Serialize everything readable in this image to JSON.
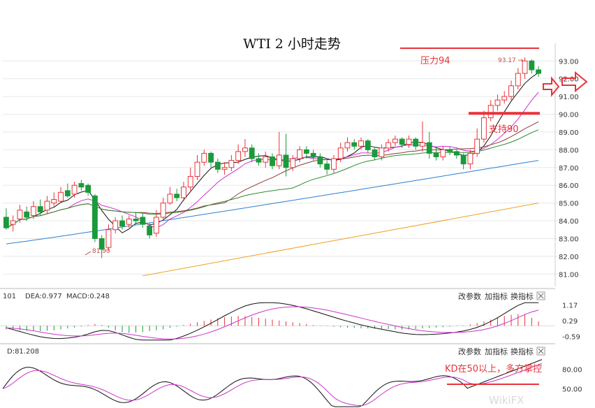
{
  "title": "WTI 2 小时走势",
  "colors": {
    "up": "#e8333a",
    "down": "#1a9a3a",
    "ma5": "#111111",
    "ma10": "#cc33cc",
    "ma20": "#8a3c3c",
    "ma30": "#2e8b2e",
    "ma60": "#2a7fd4",
    "ma120": "#f0a020",
    "annotation": "#e8333a",
    "grid": "#e8e8e8"
  },
  "chart_data": [
    {
      "type": "candlestick",
      "yticks": [
        "93.00",
        "92.00",
        "91.00",
        "90.00",
        "89.00",
        "88.00",
        "87.00",
        "86.00",
        "85.00",
        "84.00",
        "83.00",
        "82.00",
        "81.00"
      ],
      "ylim": [
        80.5,
        93.6
      ],
      "candles": [
        [
          84.2,
          83.6,
          84.7,
          83.5
        ],
        [
          83.8,
          84.0,
          84.3,
          83.4
        ],
        [
          84.1,
          84.6,
          84.9,
          83.9
        ],
        [
          84.5,
          84.2,
          84.8,
          84.0
        ],
        [
          84.3,
          84.8,
          85.1,
          84.1
        ],
        [
          84.8,
          84.5,
          85.2,
          84.3
        ],
        [
          84.6,
          85.1,
          85.4,
          84.4
        ],
        [
          85.0,
          85.2,
          85.6,
          84.8
        ],
        [
          85.1,
          85.6,
          85.9,
          85.0
        ],
        [
          85.7,
          85.4,
          86.1,
          85.3
        ],
        [
          85.5,
          86.0,
          86.2,
          85.3
        ],
        [
          86.1,
          85.9,
          86.3,
          85.7
        ],
        [
          86.0,
          85.6,
          86.1,
          85.4
        ],
        [
          85.4,
          83.0,
          85.5,
          82.8
        ],
        [
          83.0,
          82.4,
          83.2,
          81.9
        ],
        [
          82.5,
          83.5,
          83.8,
          82.3
        ],
        [
          83.5,
          84.0,
          84.2,
          83.3
        ],
        [
          84.0,
          83.7,
          84.3,
          83.5
        ],
        [
          83.8,
          84.1,
          84.3,
          83.6
        ],
        [
          84.1,
          84.0,
          84.5,
          83.8
        ],
        [
          84.2,
          83.8,
          84.4,
          83.6
        ],
        [
          83.7,
          83.2,
          83.9,
          83.0
        ],
        [
          83.3,
          84.2,
          84.6,
          83.1
        ],
        [
          84.2,
          85.0,
          85.3,
          84.0
        ],
        [
          85.0,
          85.5,
          85.9,
          84.9
        ],
        [
          85.5,
          85.3,
          85.8,
          85.1
        ],
        [
          85.3,
          85.9,
          86.2,
          85.1
        ],
        [
          85.9,
          86.5,
          87.0,
          85.7
        ],
        [
          86.5,
          87.3,
          87.7,
          86.3
        ],
        [
          87.3,
          87.8,
          88.0,
          87.1
        ],
        [
          87.8,
          87.3,
          87.9,
          87.0
        ],
        [
          87.3,
          86.9,
          87.5,
          86.7
        ],
        [
          86.9,
          87.0,
          87.3,
          86.6
        ],
        [
          87.0,
          87.4,
          87.7,
          86.8
        ],
        [
          87.4,
          87.9,
          88.3,
          87.2
        ],
        [
          87.9,
          88.1,
          88.6,
          87.6
        ],
        [
          88.1,
          87.5,
          88.3,
          87.3
        ],
        [
          87.5,
          87.3,
          87.8,
          87.1
        ],
        [
          87.3,
          87.6,
          87.9,
          87.0
        ],
        [
          87.6,
          87.1,
          87.8,
          86.9
        ],
        [
          87.1,
          87.7,
          89.0,
          86.9
        ],
        [
          87.7,
          87.0,
          88.9,
          86.5
        ],
        [
          87.0,
          87.5,
          87.7,
          86.8
        ],
        [
          87.5,
          88.0,
          88.2,
          87.3
        ],
        [
          88.0,
          87.8,
          88.2,
          87.5
        ],
        [
          87.8,
          87.6,
          88.0,
          87.4
        ],
        [
          87.6,
          87.2,
          87.8,
          87.0
        ],
        [
          87.2,
          86.9,
          87.4,
          86.6
        ],
        [
          86.9,
          87.5,
          87.7,
          86.7
        ],
        [
          87.5,
          88.1,
          88.4,
          87.3
        ],
        [
          88.1,
          88.4,
          88.7,
          87.9
        ],
        [
          88.4,
          88.2,
          88.6,
          88.0
        ],
        [
          88.2,
          88.5,
          88.7,
          88.0
        ],
        [
          88.5,
          88.0,
          88.6,
          87.8
        ],
        [
          88.0,
          87.6,
          88.1,
          87.4
        ],
        [
          87.6,
          88.1,
          88.3,
          87.4
        ],
        [
          88.1,
          88.4,
          88.6,
          87.9
        ],
        [
          88.4,
          88.6,
          88.8,
          88.2
        ],
        [
          88.6,
          88.3,
          88.7,
          88.1
        ],
        [
          88.3,
          88.6,
          88.8,
          88.1
        ],
        [
          88.6,
          88.2,
          88.7,
          88.0
        ],
        [
          88.2,
          88.4,
          89.6,
          87.9
        ],
        [
          88.4,
          87.8,
          89.0,
          87.5
        ],
        [
          87.8,
          87.6,
          88.1,
          87.4
        ],
        [
          87.6,
          88.0,
          88.2,
          87.4
        ],
        [
          88.0,
          87.9,
          88.2,
          87.7
        ],
        [
          87.9,
          87.7,
          88.0,
          87.5
        ],
        [
          87.7,
          87.2,
          87.8,
          86.9
        ],
        [
          87.2,
          87.8,
          88.0,
          86.9
        ],
        [
          87.8,
          88.6,
          89.2,
          87.6
        ],
        [
          88.6,
          89.8,
          90.2,
          88.4
        ],
        [
          89.8,
          90.5,
          90.8,
          89.6
        ],
        [
          90.5,
          90.8,
          91.1,
          90.2
        ],
        [
          90.8,
          91.0,
          91.3,
          90.6
        ],
        [
          91.0,
          91.6,
          91.9,
          90.8
        ],
        [
          91.6,
          92.3,
          92.6,
          91.4
        ],
        [
          92.3,
          93.0,
          93.2,
          92.0
        ],
        [
          93.0,
          92.5,
          93.1,
          92.3
        ],
        [
          92.5,
          92.3,
          92.7,
          92.1
        ]
      ],
      "ma_lines_visible": 6,
      "annotations": [
        {
          "label": "压力94",
          "value": 93.5
        },
        {
          "label": "支持90",
          "value": 90.05
        },
        {
          "label": "93.17",
          "value": 93.17
        },
        {
          "label": "81.90",
          "value": 81.9
        }
      ],
      "buttons": [
        "改参数",
        "加指标",
        "换指标"
      ]
    },
    {
      "type": "macd",
      "header": [
        "101",
        "DEA:0.977",
        "MACD:0.248"
      ],
      "yticks": [
        "1.17",
        "0.29",
        "-0.59"
      ],
      "ylim": [
        -0.85,
        1.35
      ],
      "histogram": [
        -0.2,
        -0.22,
        -0.25,
        -0.28,
        -0.3,
        -0.3,
        -0.28,
        -0.25,
        -0.2,
        -0.15,
        -0.1,
        -0.05,
        0.05,
        0.1,
        0.05,
        -0.1,
        -0.25,
        -0.35,
        -0.4,
        -0.38,
        -0.35,
        -0.3,
        -0.25,
        -0.2,
        -0.12,
        -0.05,
        0.05,
        0.12,
        0.2,
        0.28,
        0.35,
        0.42,
        0.48,
        0.52,
        0.55,
        0.55,
        0.5,
        0.45,
        0.4,
        0.35,
        0.3,
        0.25,
        0.2,
        0.15,
        0.1,
        0.05,
        0.02,
        -0.02,
        -0.05,
        -0.08,
        -0.1,
        -0.12,
        -0.14,
        -0.15,
        -0.16,
        -0.17,
        -0.18,
        -0.2,
        -0.22,
        -0.2,
        -0.18,
        -0.15,
        -0.12,
        -0.1,
        -0.08,
        -0.05,
        -0.02,
        0.02,
        0.08,
        0.15,
        0.25,
        0.35,
        0.45,
        0.55,
        0.62,
        0.65,
        0.62,
        0.45,
        0.25
      ],
      "buttons": [
        "改参数",
        "加指标",
        "换指标"
      ]
    },
    {
      "type": "kdj",
      "header": [
        "D:81.208"
      ],
      "yticks": [
        "80.00",
        "50.00"
      ],
      "ylim": [
        20,
        100
      ],
      "annotation": "KD在50以上，多方掌控",
      "buttons": [
        "改参数",
        "加指标",
        "换指标"
      ]
    }
  ],
  "watermark": "WikiFX"
}
